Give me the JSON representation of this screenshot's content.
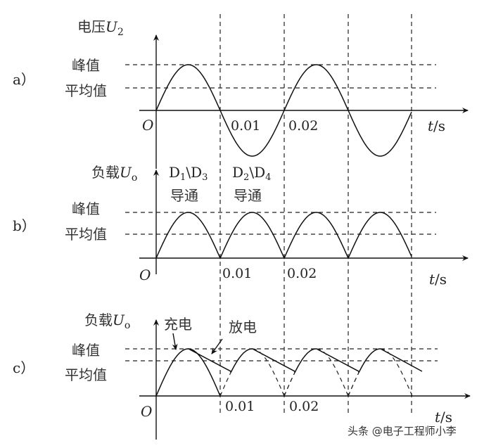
{
  "panels": [
    {
      "tag": "a）",
      "ylabel": "电压",
      "ysym": "U",
      "ysub": "2",
      "peak": "峰值",
      "avg": "平均值",
      "origin": "O",
      "ticks": [
        "0.01",
        "0.02"
      ],
      "xunit_t": "t",
      "xunit_s": "/s"
    },
    {
      "tag": "b）",
      "ylabel": "负载",
      "ysym": "U",
      "ysub": "o",
      "peak": "峰值",
      "avg": "平均值",
      "origin": "O",
      "ticks": [
        "0.01",
        "0.02"
      ],
      "xunit_t": "t",
      "xunit_s": "/s",
      "notes": [
        {
          "d1": "D",
          "s1": "1",
          "mid": "\\D",
          "s2": "3",
          "text": "导通"
        },
        {
          "d1": "D",
          "s1": "2",
          "mid": "\\D",
          "s2": "4",
          "text": "导通"
        }
      ]
    },
    {
      "tag": "c）",
      "ylabel": "负载",
      "ysym": "U",
      "ysub": "o",
      "peak": "峰值",
      "avg": "平均值",
      "origin": "O",
      "ticks": [
        "0.01",
        "0.02"
      ],
      "xunit_t": "t",
      "xunit_s": "/s",
      "charge": "充电",
      "discharge": "放电"
    }
  ],
  "watermark": "头条 @电子工程师小李"
}
